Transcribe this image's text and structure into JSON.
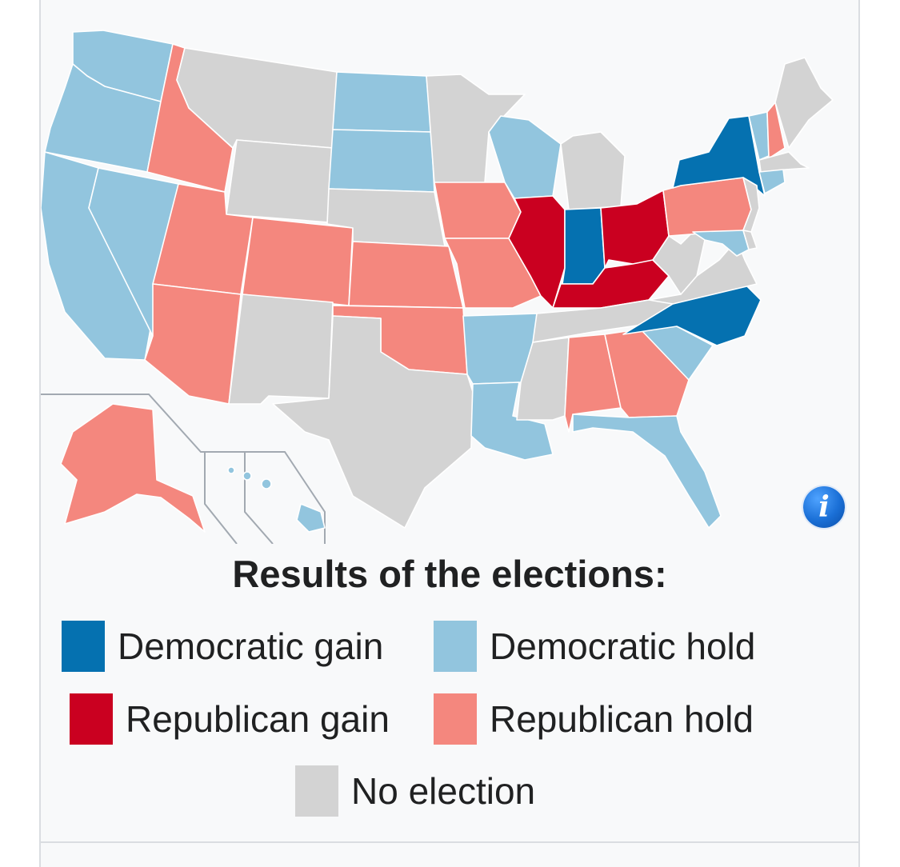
{
  "colors": {
    "dem_gain": "#0571b0",
    "dem_hold": "#92c5de",
    "rep_gain": "#ca0020",
    "rep_hold": "#f4877e",
    "no_election": "#d3d3d3"
  },
  "map": {
    "states": [
      {
        "id": "WA",
        "result": "dem_hold"
      },
      {
        "id": "OR",
        "result": "dem_hold"
      },
      {
        "id": "CA",
        "result": "dem_hold"
      },
      {
        "id": "NV",
        "result": "dem_hold"
      },
      {
        "id": "ID",
        "result": "rep_hold"
      },
      {
        "id": "MT",
        "result": "no_election"
      },
      {
        "id": "WY",
        "result": "no_election"
      },
      {
        "id": "UT",
        "result": "rep_hold"
      },
      {
        "id": "AZ",
        "result": "rep_hold"
      },
      {
        "id": "CO",
        "result": "rep_hold"
      },
      {
        "id": "NM",
        "result": "no_election"
      },
      {
        "id": "ND",
        "result": "dem_hold"
      },
      {
        "id": "SD",
        "result": "dem_hold"
      },
      {
        "id": "NE",
        "result": "no_election"
      },
      {
        "id": "KS",
        "result": "rep_hold"
      },
      {
        "id": "OK",
        "result": "rep_hold"
      },
      {
        "id": "TX",
        "result": "no_election"
      },
      {
        "id": "MN",
        "result": "no_election"
      },
      {
        "id": "IA",
        "result": "rep_hold"
      },
      {
        "id": "MO",
        "result": "rep_hold"
      },
      {
        "id": "AR",
        "result": "dem_hold"
      },
      {
        "id": "LA",
        "result": "dem_hold"
      },
      {
        "id": "WI",
        "result": "dem_hold"
      },
      {
        "id": "IL",
        "result": "rep_gain"
      },
      {
        "id": "MI",
        "result": "no_election"
      },
      {
        "id": "IN",
        "result": "dem_gain"
      },
      {
        "id": "OH",
        "result": "rep_gain"
      },
      {
        "id": "KY",
        "result": "rep_gain"
      },
      {
        "id": "TN",
        "result": "no_election"
      },
      {
        "id": "MS",
        "result": "no_election"
      },
      {
        "id": "AL",
        "result": "rep_hold"
      },
      {
        "id": "GA",
        "result": "rep_hold"
      },
      {
        "id": "FL",
        "result": "dem_hold"
      },
      {
        "id": "SC",
        "result": "dem_hold"
      },
      {
        "id": "NC",
        "result": "dem_gain"
      },
      {
        "id": "VA",
        "result": "no_election"
      },
      {
        "id": "WV",
        "result": "no_election"
      },
      {
        "id": "PA",
        "result": "rep_hold"
      },
      {
        "id": "NY",
        "result": "dem_gain"
      },
      {
        "id": "VT",
        "result": "dem_hold"
      },
      {
        "id": "NH",
        "result": "rep_hold"
      },
      {
        "id": "ME",
        "result": "no_election"
      },
      {
        "id": "MA",
        "result": "no_election"
      },
      {
        "id": "CT",
        "result": "dem_hold"
      },
      {
        "id": "NJ",
        "result": "no_election"
      },
      {
        "id": "MD",
        "result": "dem_hold"
      },
      {
        "id": "DE",
        "result": "no_election"
      },
      {
        "id": "AK",
        "result": "rep_hold"
      },
      {
        "id": "HI",
        "result": "dem_hold"
      }
    ]
  },
  "info_icon_label": "i",
  "legend": {
    "title": "Results of the elections:",
    "items": [
      {
        "key": "dem_gain",
        "label": "Democratic gain"
      },
      {
        "key": "dem_hold",
        "label": "Democratic hold"
      },
      {
        "key": "rep_gain",
        "label": "Republican gain"
      },
      {
        "key": "rep_hold",
        "label": "Republican hold"
      },
      {
        "key": "no_election",
        "label": "No election"
      }
    ]
  }
}
